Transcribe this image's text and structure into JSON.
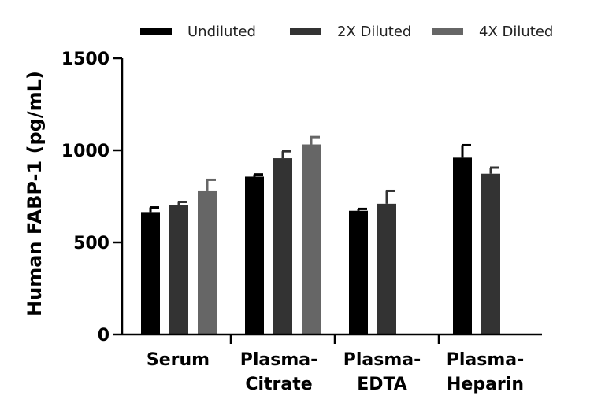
{
  "chart_data": {
    "type": "bar",
    "title": "",
    "xlabel": "",
    "ylabel": "Human FABP-1 (pg/mL)",
    "ylim": [
      0,
      1500
    ],
    "yticks": [
      0,
      500,
      1000,
      1500
    ],
    "categories": [
      [
        "Serum"
      ],
      [
        "Plasma-",
        "Citrate"
      ],
      [
        "Plasma-",
        "EDTA"
      ],
      [
        "Plasma-",
        "Heparin"
      ]
    ],
    "series": [
      {
        "name": "Undiluted",
        "color": "#000000",
        "values": [
          665,
          857,
          672,
          960
        ],
        "errors": [
          25,
          12,
          10,
          68
        ]
      },
      {
        "name": "2X Diluted",
        "color": "#333333",
        "values": [
          705,
          957,
          710,
          873
        ],
        "errors": [
          15,
          38,
          70,
          33
        ]
      },
      {
        "name": "4X Diluted",
        "color": "#666666",
        "values": [
          778,
          1032,
          null,
          null
        ],
        "errors": [
          62,
          40,
          null,
          null
        ]
      }
    ],
    "legend_position": "top",
    "grid": false
  }
}
